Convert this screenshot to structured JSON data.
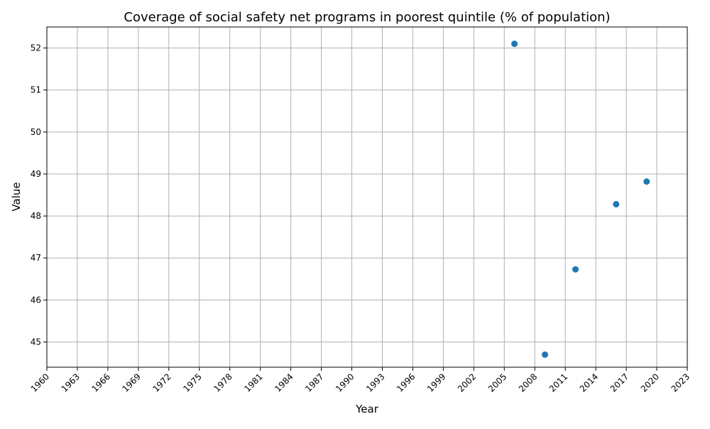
{
  "chart_data": {
    "type": "scatter",
    "title": "Coverage of social safety net programs in poorest quintile (% of population)",
    "xlabel": "Year",
    "ylabel": "Value",
    "xlim": [
      1960,
      2023
    ],
    "ylim": [
      44.4,
      52.5
    ],
    "x_ticks": [
      1960,
      1963,
      1966,
      1969,
      1972,
      1975,
      1978,
      1981,
      1984,
      1987,
      1990,
      1993,
      1996,
      1999,
      2002,
      2005,
      2008,
      2011,
      2014,
      2017,
      2020,
      2023
    ],
    "y_ticks": [
      45,
      46,
      47,
      48,
      49,
      50,
      51,
      52
    ],
    "grid": true,
    "legend": "none",
    "series": [
      {
        "color": "#1f77b4",
        "points": [
          {
            "x": 2006,
            "y": 52.1
          },
          {
            "x": 2009,
            "y": 44.7
          },
          {
            "x": 2012,
            "y": 46.73
          },
          {
            "x": 2016,
            "y": 48.28
          },
          {
            "x": 2019,
            "y": 48.82
          }
        ]
      }
    ]
  }
}
